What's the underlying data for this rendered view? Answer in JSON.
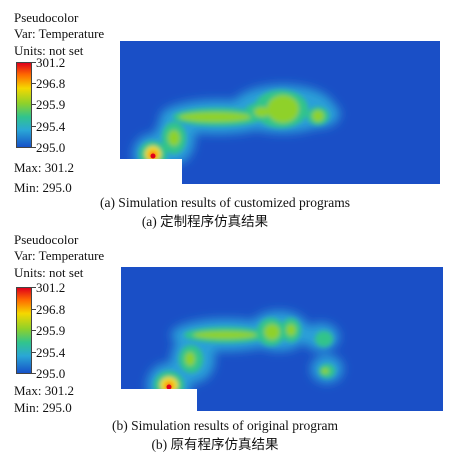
{
  "panels": [
    {
      "legend": {
        "title": "Pseudocolor",
        "var": "Var: Temperature",
        "units": "Units: not set",
        "ticks": [
          "301.2",
          "296.8",
          "295.9",
          "295.4",
          "295.0"
        ],
        "max": "Max: 301.2",
        "min": "Min: 295.0"
      },
      "caption_en": "(a) Simulation results of customized programs",
      "caption_zh": "(a) 定制程序仿真结果"
    },
    {
      "legend": {
        "title": "Pseudocolor",
        "var": "Var: Temperature",
        "units": "Units: not set",
        "ticks": [
          "301.2",
          "296.8",
          "295.9",
          "295.4",
          "295.0"
        ],
        "max": "Max: 301.2",
        "min": "Min: 295.0"
      },
      "caption_en": "(b) Simulation results of original program",
      "caption_zh": "(b) 原有程序仿真结果"
    }
  ],
  "colors": {
    "background_field": "#1a4fc6",
    "max": "#e0001a",
    "min": "#1652c8"
  }
}
